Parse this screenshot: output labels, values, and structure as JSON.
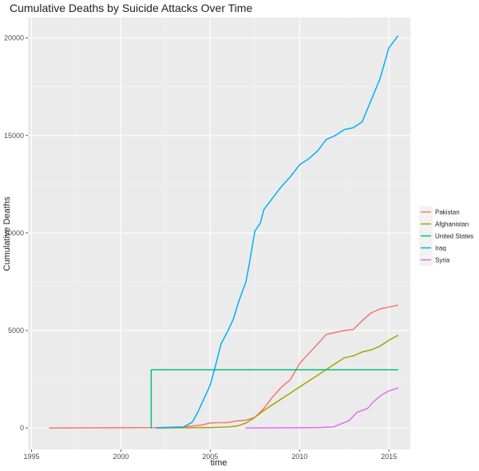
{
  "chart_data": {
    "type": "line",
    "title": "Cumulative Deaths by Suicide Attacks Over Time",
    "xlabel": "time",
    "ylabel": "Cumulative Deaths",
    "xlim": [
      1994.8,
      2016.2
    ],
    "ylim": [
      -1100,
      21050
    ],
    "x_ticks": [
      1995,
      2000,
      2005,
      2010,
      2015
    ],
    "y_ticks": [
      0,
      5000,
      10000,
      15000,
      20000
    ],
    "grid": true,
    "legend_position": "right",
    "series": [
      {
        "name": "Pakistan",
        "color": "#f8766d",
        "points": [
          [
            1996,
            0
          ],
          [
            2002,
            20
          ],
          [
            2003.5,
            60
          ],
          [
            2004.5,
            150
          ],
          [
            2005,
            260
          ],
          [
            2006,
            280
          ],
          [
            2006.5,
            360
          ],
          [
            2007,
            400
          ],
          [
            2007.5,
            550
          ],
          [
            2008,
            1000
          ],
          [
            2008.5,
            1600
          ],
          [
            2009,
            2100
          ],
          [
            2009.5,
            2500
          ],
          [
            2010,
            3300
          ],
          [
            2010.5,
            3800
          ],
          [
            2011,
            4300
          ],
          [
            2011.5,
            4800
          ],
          [
            2012,
            4900
          ],
          [
            2012.5,
            5000
          ],
          [
            2013,
            5050
          ],
          [
            2013.5,
            5500
          ],
          [
            2014,
            5900
          ],
          [
            2014.5,
            6100
          ],
          [
            2015,
            6200
          ],
          [
            2015.5,
            6300
          ]
        ]
      },
      {
        "name": "Afghanistan",
        "color": "#a3a500",
        "points": [
          [
            2002,
            0
          ],
          [
            2003.5,
            10
          ],
          [
            2005,
            20
          ],
          [
            2006,
            50
          ],
          [
            2006.5,
            100
          ],
          [
            2007,
            250
          ],
          [
            2007.5,
            550
          ],
          [
            2008,
            900
          ],
          [
            2008.5,
            1200
          ],
          [
            2009,
            1500
          ],
          [
            2009.5,
            1800
          ],
          [
            2010,
            2100
          ],
          [
            2010.5,
            2400
          ],
          [
            2011,
            2700
          ],
          [
            2011.5,
            3000
          ],
          [
            2012,
            3300
          ],
          [
            2012.5,
            3600
          ],
          [
            2013,
            3700
          ],
          [
            2013.5,
            3900
          ],
          [
            2014,
            4000
          ],
          [
            2014.5,
            4200
          ],
          [
            2015,
            4500
          ],
          [
            2015.5,
            4750
          ]
        ]
      },
      {
        "name": "United States",
        "color": "#00bf7d",
        "points": [
          [
            2001.7,
            0
          ],
          [
            2001.7,
            2980
          ],
          [
            2015.5,
            2980
          ]
        ]
      },
      {
        "name": "Iraq",
        "color": "#00b0f6",
        "points": [
          [
            2002,
            0
          ],
          [
            2003.5,
            50
          ],
          [
            2004,
            300
          ],
          [
            2004.3,
            800
          ],
          [
            2004.7,
            1600
          ],
          [
            2005,
            2200
          ],
          [
            2005.3,
            3200
          ],
          [
            2005.6,
            4300
          ],
          [
            2006,
            5000
          ],
          [
            2006.3,
            5600
          ],
          [
            2006.6,
            6500
          ],
          [
            2007,
            7500
          ],
          [
            2007.2,
            8500
          ],
          [
            2007.5,
            10100
          ],
          [
            2007.8,
            10500
          ],
          [
            2008,
            11200
          ],
          [
            2008.5,
            11800
          ],
          [
            2009,
            12400
          ],
          [
            2009.5,
            12900
          ],
          [
            2010,
            13500
          ],
          [
            2010.5,
            13800
          ],
          [
            2011,
            14200
          ],
          [
            2011.5,
            14800
          ],
          [
            2012,
            15000
          ],
          [
            2012.5,
            15300
          ],
          [
            2013,
            15400
          ],
          [
            2013.5,
            15700
          ],
          [
            2014,
            16800
          ],
          [
            2014.5,
            17900
          ],
          [
            2015,
            19500
          ],
          [
            2015.5,
            20100
          ]
        ]
      },
      {
        "name": "Syria",
        "color": "#e76bf3",
        "points": [
          [
            2007,
            0
          ],
          [
            2009,
            10
          ],
          [
            2011,
            20
          ],
          [
            2011.9,
            60
          ],
          [
            2012.3,
            200
          ],
          [
            2012.8,
            400
          ],
          [
            2013.2,
            800
          ],
          [
            2013.8,
            1000
          ],
          [
            2014.2,
            1400
          ],
          [
            2014.6,
            1700
          ],
          [
            2015,
            1900
          ],
          [
            2015.5,
            2050
          ]
        ]
      }
    ]
  }
}
